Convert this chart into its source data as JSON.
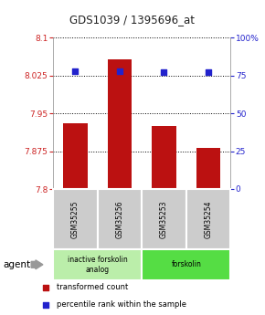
{
  "title": "GDS1039 / 1395696_at",
  "samples": [
    "GSM35255",
    "GSM35256",
    "GSM35253",
    "GSM35254"
  ],
  "bar_values": [
    7.93,
    8.057,
    7.925,
    7.882
  ],
  "percentile_values": [
    78,
    78,
    77,
    77
  ],
  "ylim_left": [
    7.8,
    8.1
  ],
  "ylim_right": [
    0,
    100
  ],
  "yticks_left": [
    7.8,
    7.875,
    7.95,
    8.025,
    8.1
  ],
  "yticks_right": [
    0,
    25,
    50,
    75,
    100
  ],
  "bar_color": "#bb1111",
  "marker_color": "#2222cc",
  "bar_width": 0.55,
  "groups": [
    {
      "label": "inactive forskolin\nanalog",
      "indices": [
        0,
        1
      ],
      "color": "#bbeeaa"
    },
    {
      "label": "forskolin",
      "indices": [
        2,
        3
      ],
      "color": "#55dd44"
    }
  ],
  "agent_label": "agent",
  "legend_bar_label": "transformed count",
  "legend_marker_label": "percentile rank within the sample",
  "title_color": "#222222",
  "left_axis_color": "#cc2222",
  "right_axis_color": "#2222cc",
  "bg_plot": "#ffffff",
  "bg_sample_labels": "#cccccc",
  "arrow_color": "#999999"
}
